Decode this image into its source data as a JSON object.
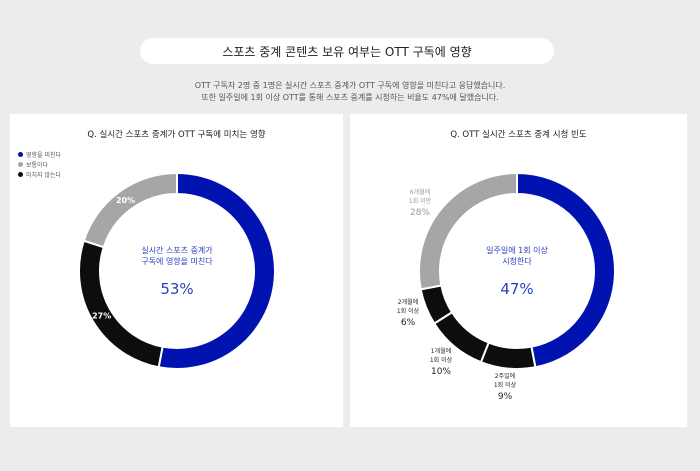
{
  "header": {
    "title": "스포츠 중계 콘텐츠 보유 여부는 OTT 구독에 영향",
    "desc_line1": "OTT 구독자 2명 중 1명은 실시간 스포츠 중계가 OTT 구독에 영향을 미친다고 응답했습니다.",
    "desc_line2": "또한 일주일에 1회 이상 OTT를 통해 스포츠 중계를 시청하는 비율도 47%에 달했습니다."
  },
  "colors": {
    "blue": "#0013b0",
    "black": "#0d0d0d",
    "gray": "#a6a6a6",
    "center_blue": "#2b3fbd"
  },
  "chart_data": [
    {
      "type": "pie",
      "title": "Q. 실시간 스포츠 중계가 OTT 구독에 미치는 영향",
      "legend": [
        "영향을 미친다",
        "보통이다",
        "미치지 않는다"
      ],
      "legend_placement": "top-left",
      "center_label": [
        "실시간 스포츠 중계가",
        "구독에 영향을 미친다"
      ],
      "center_value": "53%",
      "slices": [
        {
          "label": "영향을 미친다",
          "value": 53,
          "text": "53%",
          "color": "#0013b0"
        },
        {
          "label": "미치지 않는다",
          "value": 27,
          "text": "27%",
          "color": "#0d0d0d"
        },
        {
          "label": "보통이다",
          "value": 20,
          "text": "20%",
          "color": "#a6a6a6"
        }
      ]
    },
    {
      "type": "pie",
      "title": "Q. OTT 실시간 스포츠 중계 시청 빈도",
      "center_label": [
        "일주일에 1회 이상",
        "시청한다"
      ],
      "center_value": "47%",
      "slices": [
        {
          "label": [
            "일주일에 1회 이상"
          ],
          "value": 47,
          "text": "47%",
          "color": "#0013b0"
        },
        {
          "label": [
            "2주일에",
            "1회 이상"
          ],
          "value": 9,
          "text": "9%",
          "color": "#0d0d0d"
        },
        {
          "label": [
            "1개월에",
            "1회 이상"
          ],
          "value": 10,
          "text": "10%",
          "color": "#0d0d0d"
        },
        {
          "label": [
            "2개월에",
            "1회 이상"
          ],
          "value": 6,
          "text": "6%",
          "color": "#0d0d0d"
        },
        {
          "label": [
            "6개월에",
            "1회 미만"
          ],
          "value": 28,
          "text": "28%",
          "color": "#a6a6a6"
        }
      ]
    }
  ]
}
